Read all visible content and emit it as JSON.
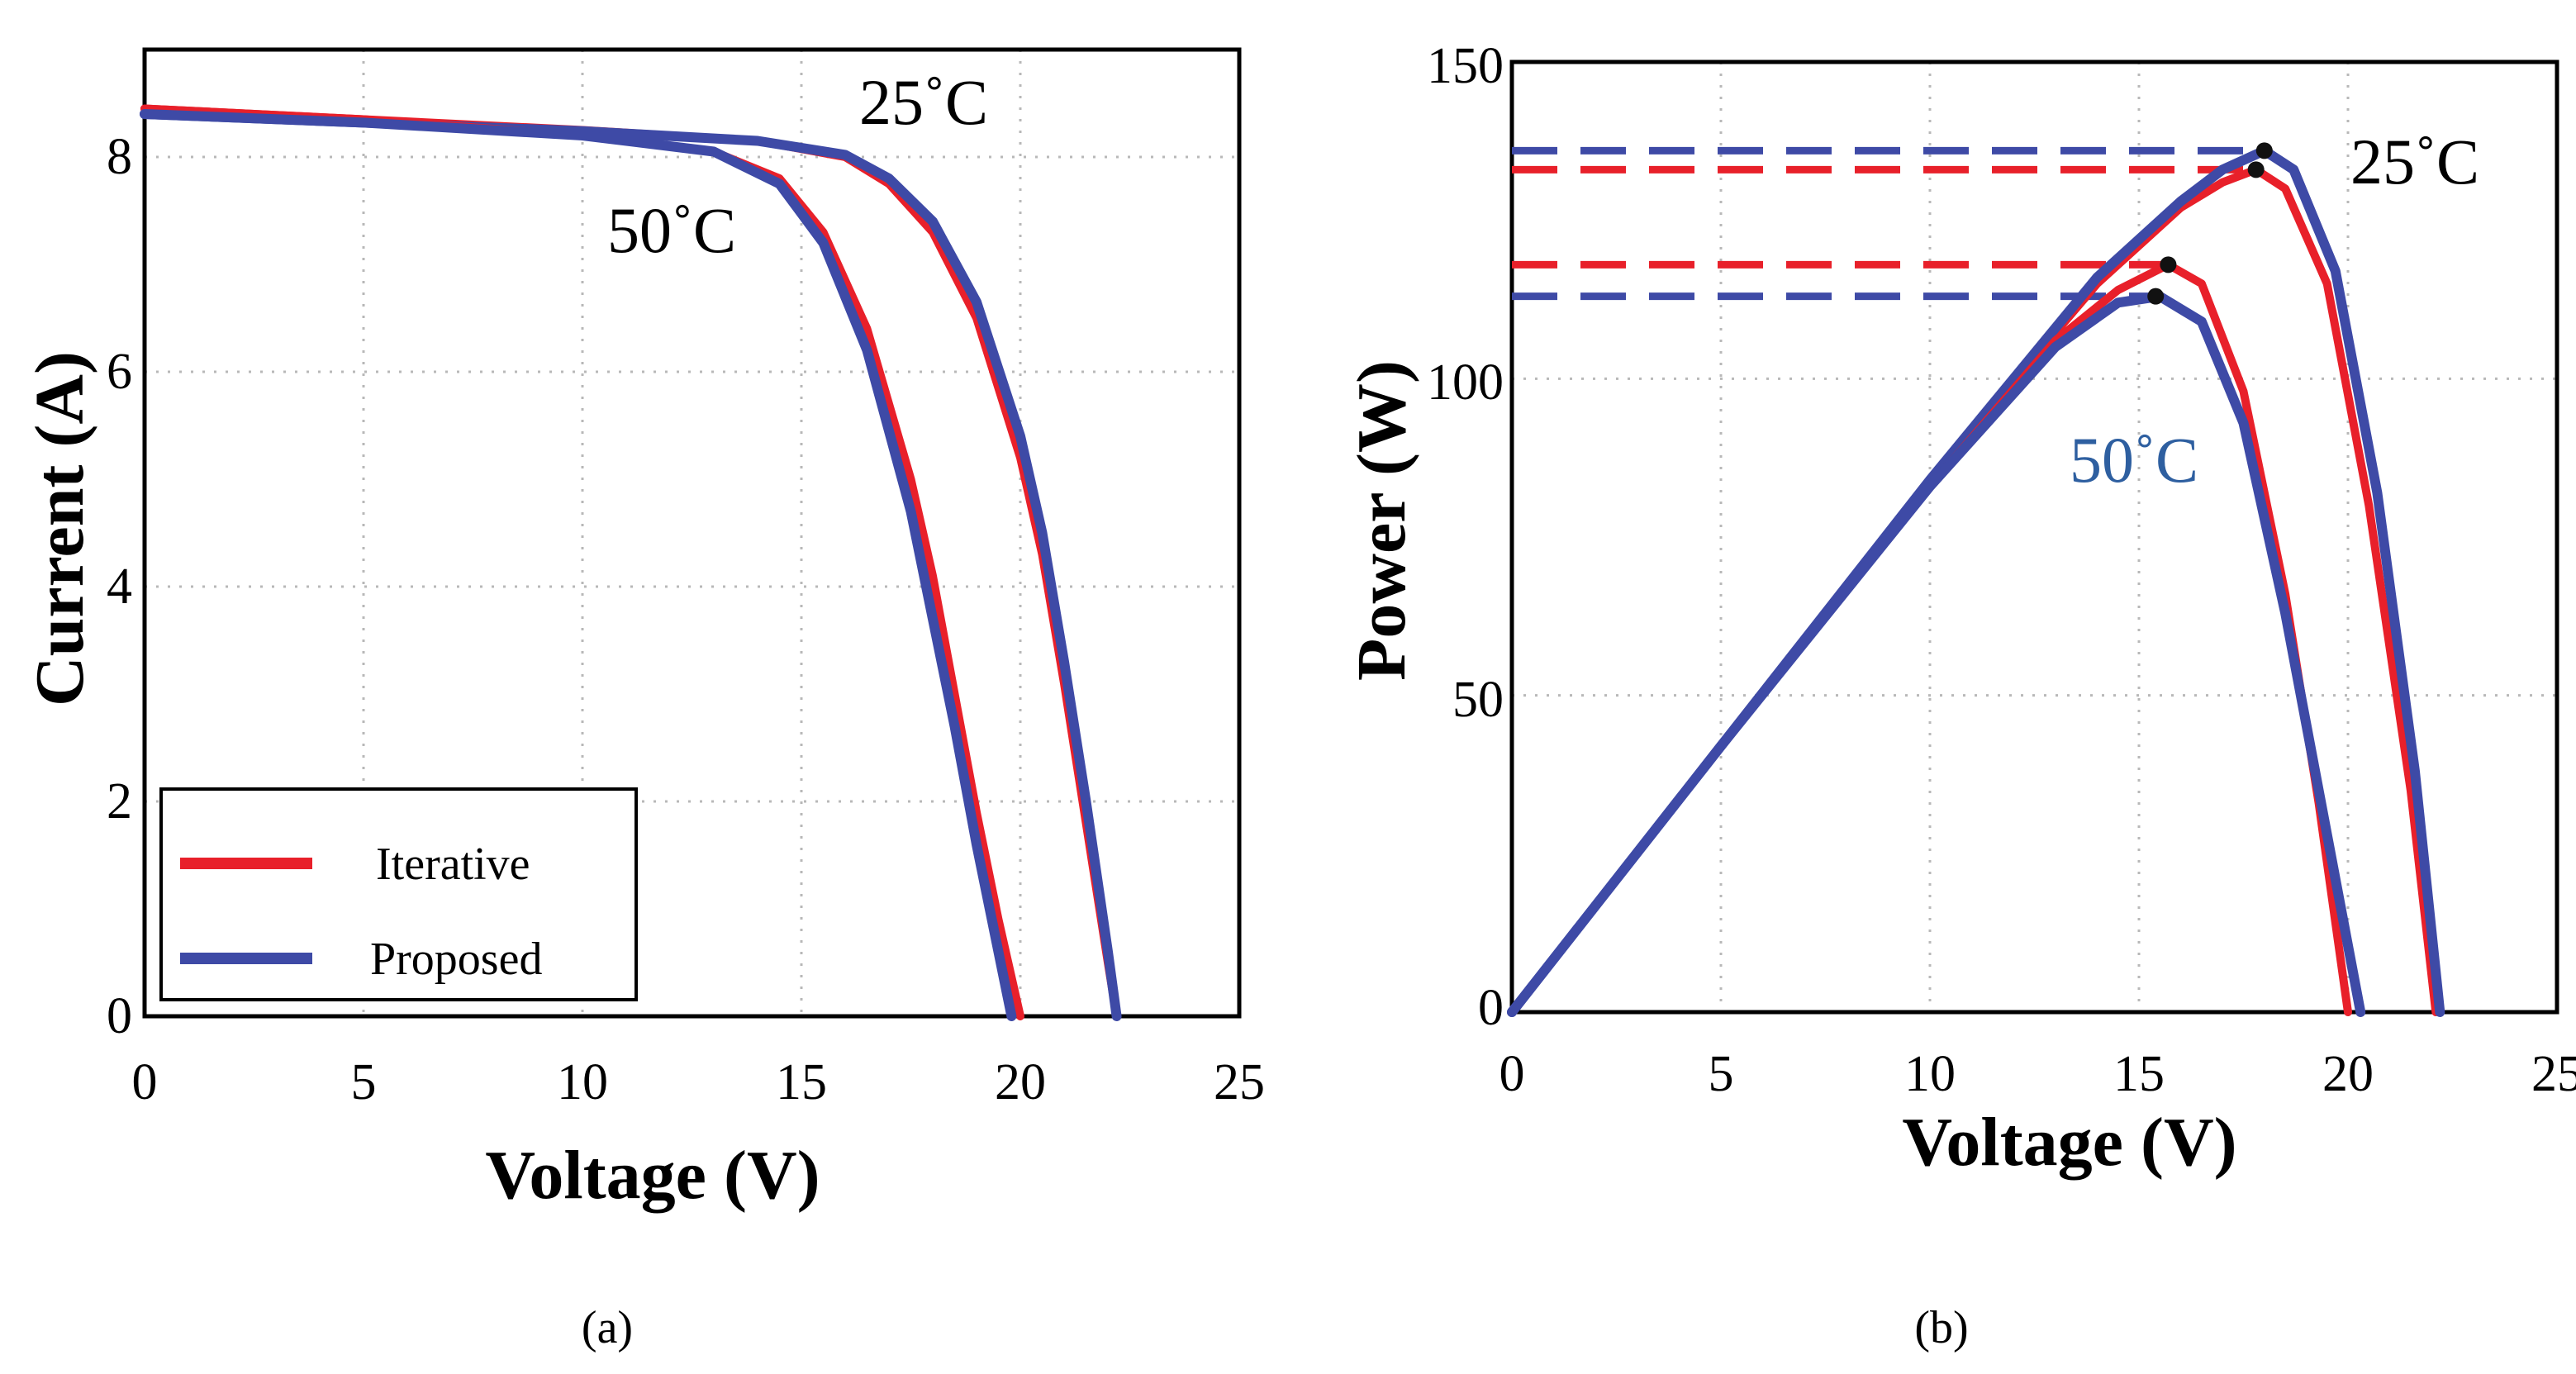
{
  "colors": {
    "iterative": "#e8202a",
    "proposed": "#3e4aa6",
    "label_50c_b": "#2e5fa0"
  },
  "chart_data": [
    {
      "type": "line",
      "panel": "a",
      "caption": "(a)",
      "xlabel": "Voltage (V)",
      "ylabel": "Current (A)",
      "xlim": [
        0,
        25
      ],
      "ylim": [
        0,
        9
      ],
      "grid": true,
      "xticks": [
        "0",
        "5",
        "10",
        "15",
        "20",
        "25"
      ],
      "yticks": [
        "0",
        "2",
        "4",
        "6",
        "8"
      ],
      "annotations": [
        "25˚C",
        "50˚C"
      ],
      "legend": {
        "placement": "bottom-left",
        "entries": [
          "Iterative",
          "Proposed"
        ]
      },
      "series": [
        {
          "name": "Iterative 25˚C",
          "color": "#e8202a",
          "x": [
            0,
            5,
            10,
            14,
            16,
            17,
            18,
            19,
            20,
            20.5,
            21,
            21.5,
            22,
            22.2
          ],
          "y": [
            8.45,
            8.35,
            8.25,
            8.15,
            8.0,
            7.75,
            7.3,
            6.5,
            5.2,
            4.3,
            3.1,
            1.8,
            0.5,
            0
          ]
        },
        {
          "name": "Proposed 25˚C",
          "color": "#3e4aa6",
          "x": [
            0,
            5,
            10,
            14,
            16,
            17,
            18,
            19,
            20,
            20.5,
            21,
            21.5,
            22,
            22.2
          ],
          "y": [
            8.4,
            8.32,
            8.24,
            8.15,
            8.02,
            7.8,
            7.4,
            6.65,
            5.4,
            4.5,
            3.3,
            2.0,
            0.6,
            0
          ]
        },
        {
          "name": "Iterative 50˚C",
          "color": "#e8202a",
          "x": [
            0,
            5,
            10,
            13,
            14.5,
            15.5,
            16.5,
            17.5,
            18,
            18.5,
            19,
            19.5,
            20
          ],
          "y": [
            8.45,
            8.35,
            8.2,
            8.05,
            7.8,
            7.3,
            6.4,
            5.0,
            4.1,
            3.0,
            1.9,
            0.9,
            0
          ]
        },
        {
          "name": "Proposed 50˚C",
          "color": "#3e4aa6",
          "x": [
            0,
            5,
            10,
            13,
            14.5,
            15.5,
            16.5,
            17.5,
            18,
            18.5,
            19,
            19.5,
            19.8
          ],
          "y": [
            8.4,
            8.32,
            8.2,
            8.05,
            7.75,
            7.2,
            6.2,
            4.7,
            3.7,
            2.7,
            1.6,
            0.6,
            0
          ]
        }
      ]
    },
    {
      "type": "line",
      "panel": "b",
      "caption": "(b)",
      "xlabel": "Voltage (V)",
      "ylabel": "Power (W)",
      "xlim": [
        0,
        25
      ],
      "ylim": [
        0,
        150
      ],
      "grid": true,
      "xticks": [
        "0",
        "5",
        "10",
        "15",
        "20",
        "25"
      ],
      "yticks": [
        "0",
        "50",
        "100",
        "150"
      ],
      "annotations": [
        "25˚C",
        "50˚C"
      ],
      "series": [
        {
          "name": "Iterative 25˚C",
          "color": "#e8202a",
          "x": [
            0,
            5,
            10,
            14,
            16,
            17,
            17.8,
            18.5,
            19.5,
            20.5,
            21.5,
            22.1
          ],
          "y": [
            0,
            42,
            84,
            115,
            127,
            131,
            133,
            130,
            115,
            80,
            35,
            0
          ]
        },
        {
          "name": "Proposed 25˚C",
          "color": "#3e4aa6",
          "x": [
            0,
            5,
            10,
            14,
            16,
            17,
            18,
            18.7,
            19.7,
            20.7,
            21.6,
            22.2
          ],
          "y": [
            0,
            42,
            84,
            116,
            128,
            133,
            136,
            133,
            117,
            82,
            38,
            0
          ]
        },
        {
          "name": "Iterative 50˚C",
          "color": "#e8202a",
          "x": [
            0,
            5,
            10,
            13,
            14.5,
            15.7,
            16.5,
            17.5,
            18.5,
            19.3,
            20
          ],
          "y": [
            0,
            42,
            83,
            106,
            114,
            118,
            115,
            98,
            66,
            33,
            0
          ]
        },
        {
          "name": "Proposed 50˚C",
          "color": "#3e4aa6",
          "x": [
            0,
            5,
            10,
            13,
            14.5,
            15.5,
            16.5,
            17.5,
            18.5,
            19.5,
            20.3
          ],
          "y": [
            0,
            42,
            83,
            105,
            112,
            113,
            109,
            93,
            63,
            28,
            0
          ]
        }
      ],
      "mpp_reference_lines": [
        {
          "series": "Proposed 25˚C",
          "color": "#3e4aa6",
          "x": 18.0,
          "y": 136
        },
        {
          "series": "Iterative 25˚C",
          "color": "#e8202a",
          "x": 17.8,
          "y": 133
        },
        {
          "series": "Iterative 50˚C",
          "color": "#e8202a",
          "x": 15.7,
          "y": 118
        },
        {
          "series": "Proposed 50˚C",
          "color": "#3e4aa6",
          "x": 15.4,
          "y": 113
        }
      ]
    }
  ]
}
